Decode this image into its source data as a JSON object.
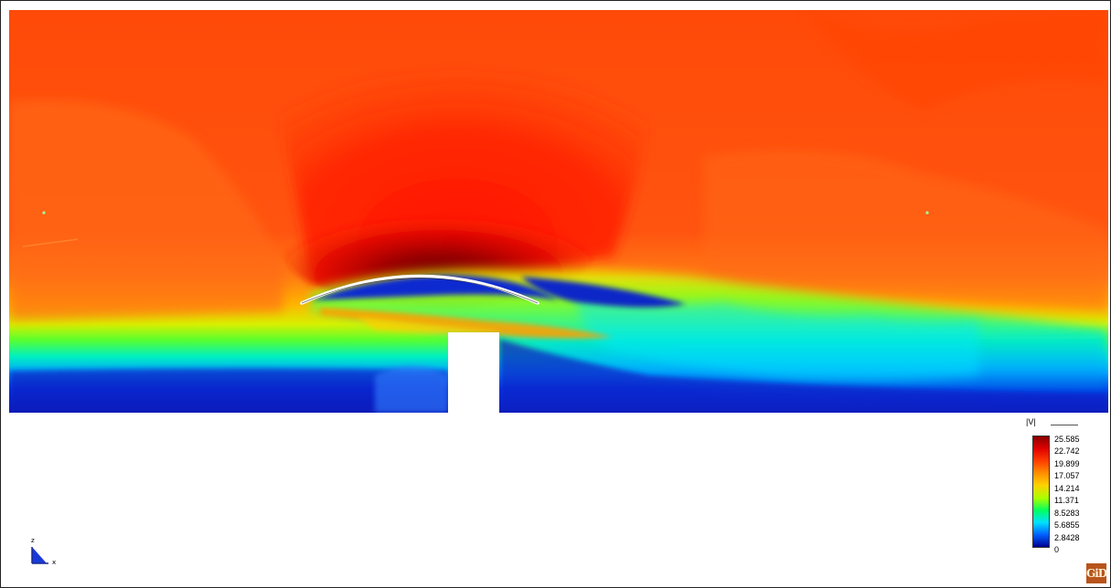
{
  "legend": {
    "title": "|V|",
    "labels": [
      "25.585",
      "22.742",
      "19.899",
      "17.057",
      "14.214",
      "11.371",
      "8.5283",
      "5.6855",
      "2.8428",
      "0"
    ],
    "colors": [
      "#8b0000",
      "#e00000",
      "#ff3c00",
      "#ff8c00",
      "#ffd000",
      "#a8ff00",
      "#00ff60",
      "#00e0ff",
      "#0060ff",
      "#000090"
    ]
  },
  "axes": {
    "vertical_label": "z",
    "horizontal_label": "x"
  },
  "logo": {
    "text": "GiD"
  },
  "colors": {
    "field_red": "#ff3a00",
    "field_orange": "#ff5a10",
    "field_dark_red": "#b20000",
    "solid_white": "#ffffff",
    "slow_blue": "#0a1ec8"
  }
}
